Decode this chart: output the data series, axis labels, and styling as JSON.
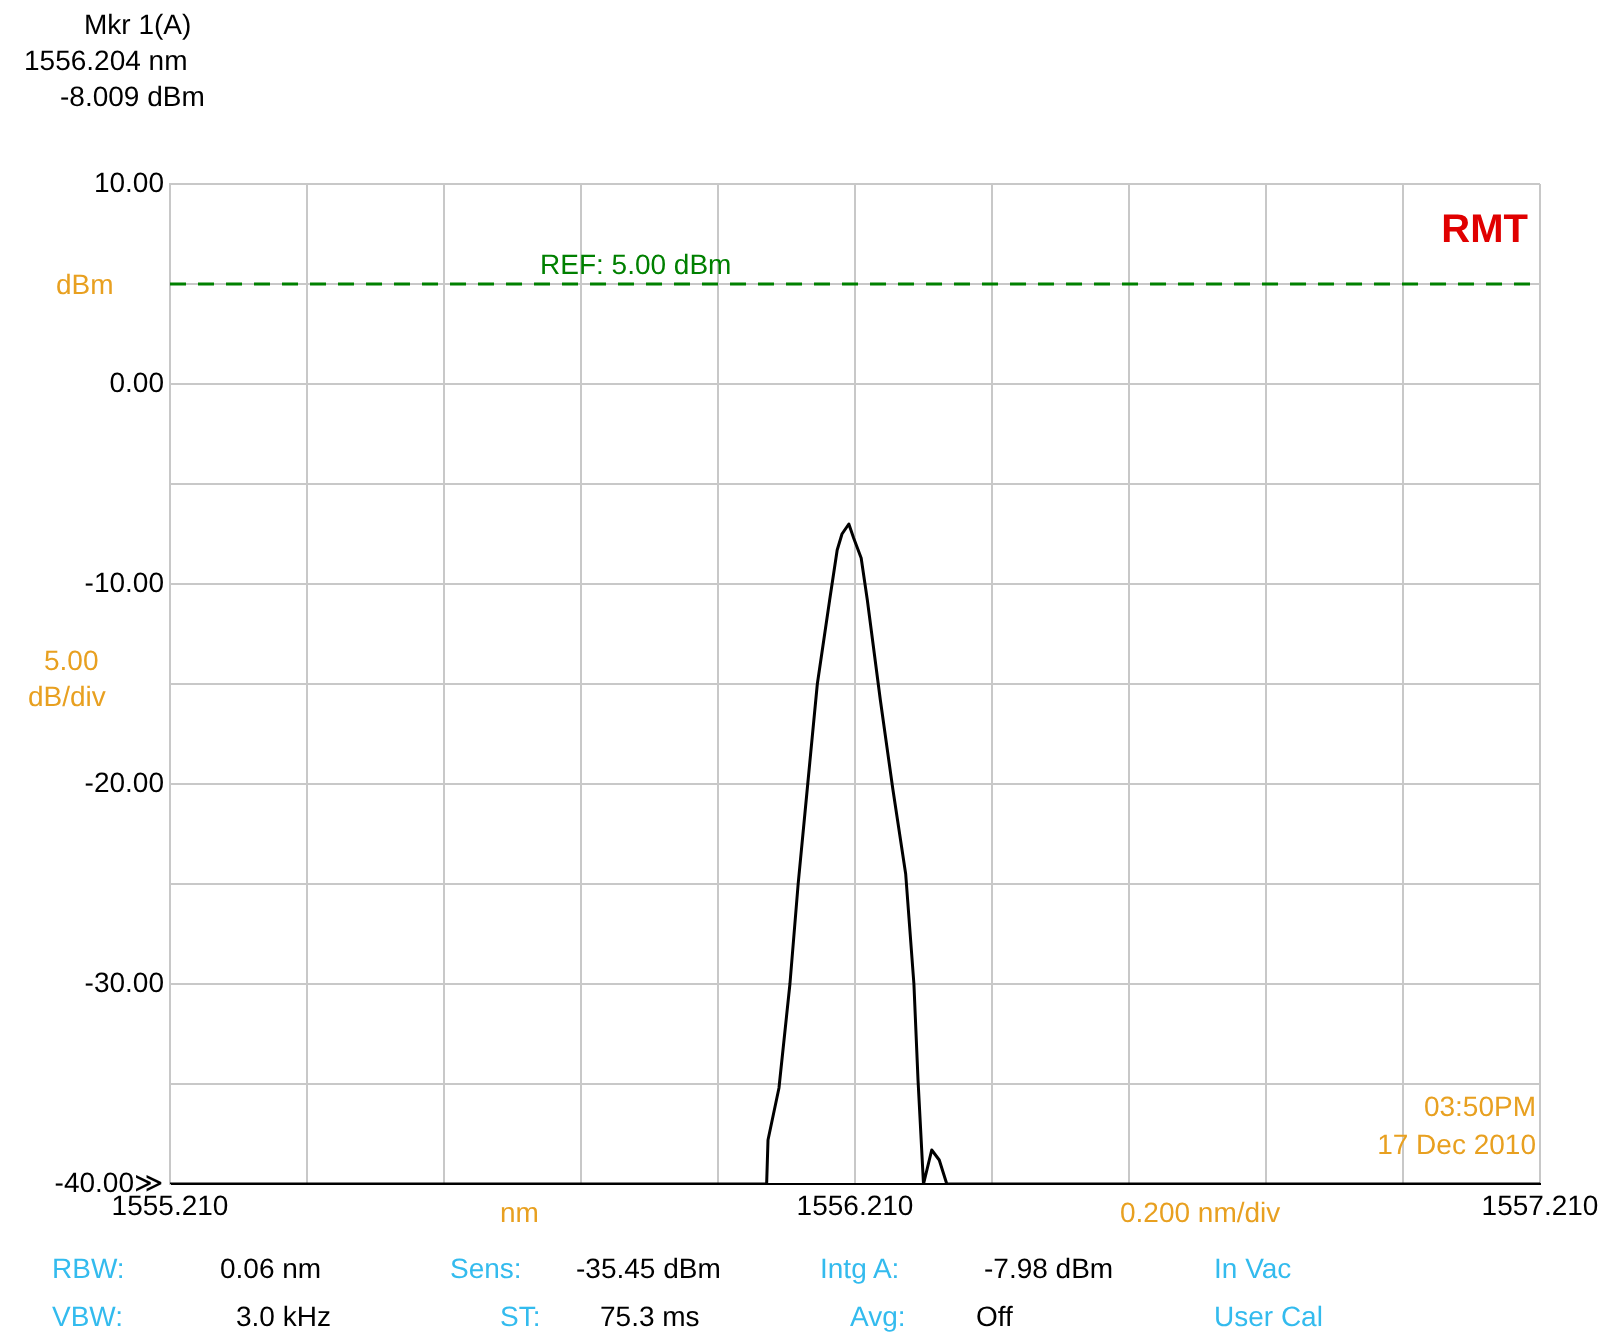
{
  "chart_data": {
    "type": "line",
    "xlabel": "nm",
    "ylabel": "dBm",
    "x": [
      1555.21,
      1556.081,
      1556.083,
      1556.099,
      1556.115,
      1556.127,
      1556.141,
      1556.155,
      1556.173,
      1556.184,
      1556.191,
      1556.201,
      1556.208,
      1556.219,
      1556.228,
      1556.247,
      1556.265,
      1556.284,
      1556.296,
      1556.302,
      1556.31,
      1556.322,
      1556.333,
      1556.344,
      1557.21
    ],
    "series": [
      {
        "color": "#000000",
        "values": [
          -40,
          -40,
          -37.8,
          -35.2,
          -30,
          -25,
          -20,
          -15,
          -10.8,
          -8.3,
          -7.5,
          -7.0,
          -7.7,
          -8.7,
          -10.8,
          -15.8,
          -20.2,
          -24.5,
          -30,
          -34.8,
          -40,
          -38.3,
          -38.8,
          -40,
          -40
        ]
      }
    ],
    "xlim": [
      1555.21,
      1557.21
    ],
    "xticks": [
      {
        "value": 1555.21,
        "label": "1555.210"
      },
      {
        "value": 1555.41,
        "label": null
      },
      {
        "value": 1555.61,
        "label": null
      },
      {
        "value": 1555.81,
        "label": null
      },
      {
        "value": 1556.01,
        "label": null
      },
      {
        "value": 1556.21,
        "label": "1556.210"
      },
      {
        "value": 1556.41,
        "label": null
      },
      {
        "value": 1556.61,
        "label": null
      },
      {
        "value": 1556.81,
        "label": null
      },
      {
        "value": 1557.01,
        "label": null
      },
      {
        "value": 1557.21,
        "label": "1557.210"
      }
    ],
    "ylim": [
      -40,
      10
    ],
    "yticks": [
      {
        "value": -40,
        "label": "-40.00≫"
      },
      {
        "value": -35,
        "label": null
      },
      {
        "value": -30,
        "label": "-30.00"
      },
      {
        "value": -25,
        "label": null
      },
      {
        "value": -20,
        "label": "-20.00"
      },
      {
        "value": -15,
        "label": null
      },
      {
        "value": -10,
        "label": "-10.00"
      },
      {
        "value": -5,
        "label": null
      },
      {
        "value": 0,
        "label": "0.00"
      },
      {
        "value": 5,
        "label": null
      },
      {
        "value": 10,
        "label": "10.00"
      }
    ],
    "grid": true,
    "legend": false,
    "marker": "none",
    "line_style": "solid",
    "ref_lines": [
      {
        "axis": "y",
        "value": 5,
        "label": "REF: 5.00 dBm",
        "color": "#008000",
        "line_style": "dashed"
      }
    ],
    "annotations": [
      "Mkr 1(A)",
      "1556.204 nm",
      "-8.009 dBm",
      "RMT",
      "03:50PM",
      "17 Dec 2010",
      "5.00",
      "dB/div",
      "0.200 nm/div",
      "RBW:",
      "0.06 nm",
      "VBW:",
      "3.0 kHz",
      "Sens:",
      "-35.45 dBm",
      "ST:",
      "75.3 ms",
      "Intg A:",
      "-7.98 dBm",
      "Avg:",
      "Off",
      "In Vac",
      "User Cal"
    ]
  }
}
